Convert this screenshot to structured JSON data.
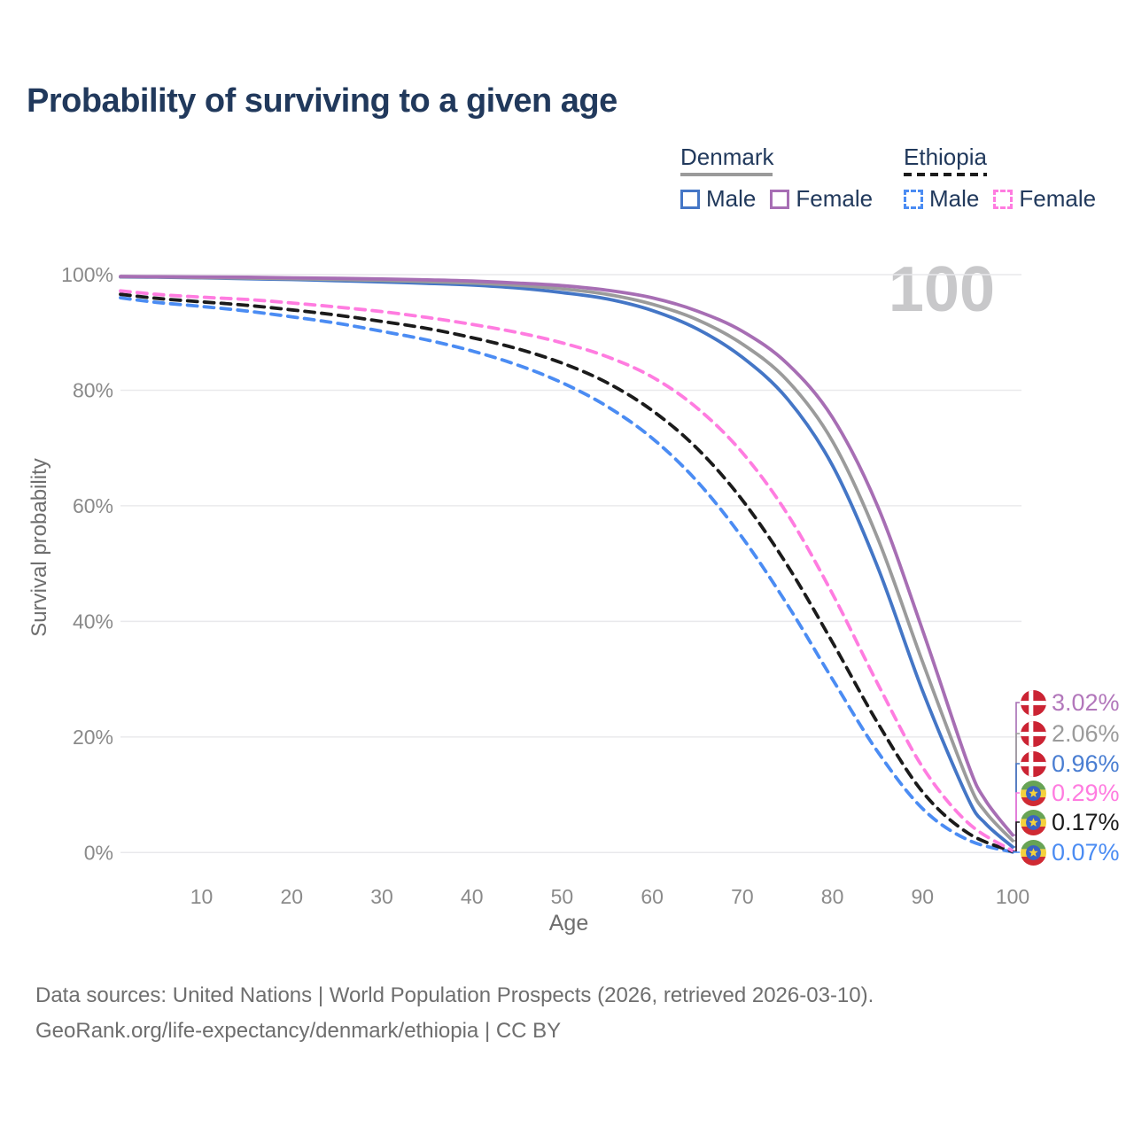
{
  "title": "Probability of surviving to a given age",
  "watermark": "100",
  "legend": {
    "groups": [
      {
        "country": "Denmark",
        "line_style": "solid",
        "line_color": "#9a9a9a",
        "items": [
          {
            "label": "Male",
            "color": "#4476c6",
            "style": "solid"
          },
          {
            "label": "Female",
            "color": "#a76eb4",
            "style": "solid"
          }
        ]
      },
      {
        "country": "Ethiopia",
        "line_style": "dashed",
        "line_color": "#1b1b1b",
        "items": [
          {
            "label": "Male",
            "color": "#4b8cf3",
            "style": "dashed"
          },
          {
            "label": "Female",
            "color": "#ff7ce0",
            "style": "dashed"
          }
        ]
      }
    ]
  },
  "chart_data": {
    "type": "line",
    "title": "Probability of surviving to a given age",
    "xlabel": "Age",
    "ylabel": "Survival probability",
    "xlim": [
      1,
      100
    ],
    "ylim": [
      0,
      100
    ],
    "grid": true,
    "x_ticks": [
      10,
      20,
      30,
      40,
      50,
      60,
      70,
      80,
      90,
      100
    ],
    "y_ticks": [
      {
        "value": 0,
        "label": "0%"
      },
      {
        "value": 20,
        "label": "20%"
      },
      {
        "value": 40,
        "label": "40%"
      },
      {
        "value": 60,
        "label": "60%"
      },
      {
        "value": 80,
        "label": "80%"
      },
      {
        "value": 100,
        "label": "100%"
      }
    ],
    "series": [
      {
        "name": "Denmark Male",
        "country": "denmark",
        "sex": "male",
        "style": "solid",
        "color": "#4476c6",
        "end_label": "0.96%",
        "end_label_color": "#4a7ed2",
        "points": [
          [
            1,
            99.6
          ],
          [
            5,
            99.55
          ],
          [
            10,
            99.45
          ],
          [
            15,
            99.3
          ],
          [
            20,
            99.15
          ],
          [
            25,
            98.95
          ],
          [
            30,
            98.75
          ],
          [
            35,
            98.5
          ],
          [
            40,
            98.2
          ],
          [
            45,
            97.7
          ],
          [
            50,
            96.9
          ],
          [
            55,
            95.8
          ],
          [
            60,
            93.8
          ],
          [
            65,
            90.6
          ],
          [
            70,
            85.7
          ],
          [
            75,
            78.5
          ],
          [
            80,
            67.0
          ],
          [
            85,
            49.5
          ],
          [
            90,
            28.0
          ],
          [
            95,
            9.5
          ],
          [
            97,
            5.0
          ],
          [
            100,
            0.96
          ]
        ]
      },
      {
        "name": "Denmark",
        "country": "denmark",
        "sex": "both",
        "style": "solid",
        "color": "#9b9b9b",
        "end_label": "2.06%",
        "end_label_color": "#9b9b9b",
        "points": [
          [
            1,
            99.65
          ],
          [
            5,
            99.6
          ],
          [
            10,
            99.5
          ],
          [
            15,
            99.4
          ],
          [
            20,
            99.3
          ],
          [
            25,
            99.15
          ],
          [
            30,
            99.0
          ],
          [
            35,
            98.8
          ],
          [
            40,
            98.55
          ],
          [
            45,
            98.15
          ],
          [
            50,
            97.55
          ],
          [
            55,
            96.6
          ],
          [
            60,
            94.9
          ],
          [
            65,
            92.2
          ],
          [
            70,
            88.0
          ],
          [
            75,
            81.7
          ],
          [
            80,
            71.2
          ],
          [
            85,
            54.5
          ],
          [
            90,
            33.0
          ],
          [
            95,
            12.5
          ],
          [
            97,
            7.0
          ],
          [
            100,
            2.06
          ]
        ]
      },
      {
        "name": "Denmark Female",
        "country": "denmark",
        "sex": "female",
        "style": "solid",
        "color": "#a76eb4",
        "end_label": "3.02%",
        "end_label_color": "#b277bb",
        "points": [
          [
            1,
            99.7
          ],
          [
            5,
            99.65
          ],
          [
            10,
            99.6
          ],
          [
            15,
            99.55
          ],
          [
            20,
            99.45
          ],
          [
            25,
            99.35
          ],
          [
            30,
            99.25
          ],
          [
            35,
            99.1
          ],
          [
            40,
            98.9
          ],
          [
            45,
            98.55
          ],
          [
            50,
            98.1
          ],
          [
            55,
            97.3
          ],
          [
            60,
            96.0
          ],
          [
            65,
            93.7
          ],
          [
            70,
            90.2
          ],
          [
            75,
            84.6
          ],
          [
            80,
            75.3
          ],
          [
            85,
            60.0
          ],
          [
            90,
            38.5
          ],
          [
            95,
            15.5
          ],
          [
            97,
            9.0
          ],
          [
            100,
            3.02
          ]
        ]
      },
      {
        "name": "Ethiopia Male",
        "country": "ethiopia",
        "sex": "male",
        "style": "dashed",
        "color": "#4b8cf3",
        "end_label": "0.07%",
        "end_label_color": "#4b8cf3",
        "points": [
          [
            1,
            96.0
          ],
          [
            5,
            95.2
          ],
          [
            10,
            94.5
          ],
          [
            15,
            93.7
          ],
          [
            20,
            92.7
          ],
          [
            25,
            91.6
          ],
          [
            30,
            90.2
          ],
          [
            35,
            88.7
          ],
          [
            40,
            86.8
          ],
          [
            45,
            84.4
          ],
          [
            50,
            81.3
          ],
          [
            55,
            77.2
          ],
          [
            60,
            71.7
          ],
          [
            65,
            64.2
          ],
          [
            70,
            54.5
          ],
          [
            75,
            42.9
          ],
          [
            80,
            30.0
          ],
          [
            85,
            17.5
          ],
          [
            90,
            7.6
          ],
          [
            95,
            2.2
          ],
          [
            100,
            0.07
          ]
        ]
      },
      {
        "name": "Ethiopia",
        "country": "ethiopia",
        "sex": "both",
        "style": "dashed",
        "color": "#1b1b1b",
        "end_label": "0.17%",
        "end_label_color": "#1b1b1b",
        "points": [
          [
            1,
            96.6
          ],
          [
            5,
            95.9
          ],
          [
            10,
            95.3
          ],
          [
            15,
            94.7
          ],
          [
            20,
            93.9
          ],
          [
            25,
            93.0
          ],
          [
            30,
            91.9
          ],
          [
            35,
            90.7
          ],
          [
            40,
            89.1
          ],
          [
            45,
            87.2
          ],
          [
            50,
            84.7
          ],
          [
            55,
            81.3
          ],
          [
            60,
            76.5
          ],
          [
            65,
            69.9
          ],
          [
            70,
            61.0
          ],
          [
            75,
            49.7
          ],
          [
            80,
            36.4
          ],
          [
            85,
            22.5
          ],
          [
            90,
            10.5
          ],
          [
            95,
            3.4
          ],
          [
            100,
            0.17
          ]
        ]
      },
      {
        "name": "Ethiopia Female",
        "country": "ethiopia",
        "sex": "female",
        "style": "dashed",
        "color": "#ff7ce0",
        "end_label": "0.29%",
        "end_label_color": "#ff7ce0",
        "points": [
          [
            1,
            97.2
          ],
          [
            5,
            96.6
          ],
          [
            10,
            96.1
          ],
          [
            15,
            95.7
          ],
          [
            20,
            95.1
          ],
          [
            25,
            94.4
          ],
          [
            30,
            93.6
          ],
          [
            35,
            92.6
          ],
          [
            40,
            91.4
          ],
          [
            45,
            90.0
          ],
          [
            50,
            88.2
          ],
          [
            55,
            85.8
          ],
          [
            60,
            82.3
          ],
          [
            65,
            76.9
          ],
          [
            70,
            69.2
          ],
          [
            75,
            58.6
          ],
          [
            80,
            44.8
          ],
          [
            85,
            29.3
          ],
          [
            90,
            14.8
          ],
          [
            95,
            5.2
          ],
          [
            100,
            0.29
          ]
        ]
      }
    ],
    "flag_colors": {
      "denmark_red": "#cb2333",
      "ethiopia_green": "#67a355",
      "ethiopia_yellow": "#f4d13d",
      "ethiopia_red": "#d02a33",
      "ethiopia_blue": "#3a62c4"
    }
  },
  "footer": {
    "line1": "Data sources: United Nations | World Population Prospects (2026, retrieved 2026-03-10).",
    "line2": "GeoRank.org/life-expectancy/denmark/ethiopia | CC BY"
  }
}
